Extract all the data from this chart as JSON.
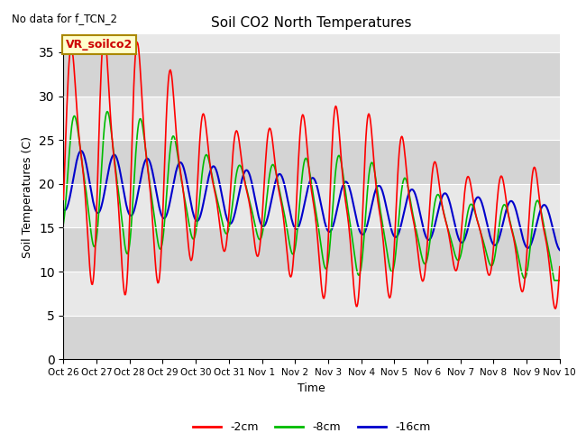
{
  "title": "Soil CO2 North Temperatures",
  "no_data_label": "No data for f_TCN_2",
  "legend_box_label": "VR_soilco2",
  "xlabel": "Time",
  "ylabel": "Soil Temperatures (C)",
  "ylim": [
    0,
    37
  ],
  "yticks": [
    0,
    5,
    10,
    15,
    20,
    25,
    30,
    35
  ],
  "xtick_labels": [
    "Oct 26",
    "Oct 27",
    "Oct 28",
    "Oct 29",
    "Oct 30",
    "Oct 31",
    "Nov 1",
    "Nov 2",
    "Nov 3",
    "Nov 4",
    "Nov 5",
    "Nov 6",
    "Nov 7",
    "Nov 8",
    "Nov 9",
    "Nov 10"
  ],
  "colors": {
    "red": "#FF0000",
    "green": "#00BB00",
    "blue": "#0000CC",
    "background": "#E8E8E8",
    "legend_box_bg": "#FFFFCC",
    "legend_box_edge": "#AA8800"
  },
  "legend_entries": [
    "-2cm",
    "-8cm",
    "-16cm"
  ],
  "legend_colors": [
    "#FF0000",
    "#00BB00",
    "#0000CC"
  ],
  "band_colors": [
    "#D0D0D0",
    "#E8E8E8"
  ],
  "n_days": 15,
  "pts_per_day": 48
}
